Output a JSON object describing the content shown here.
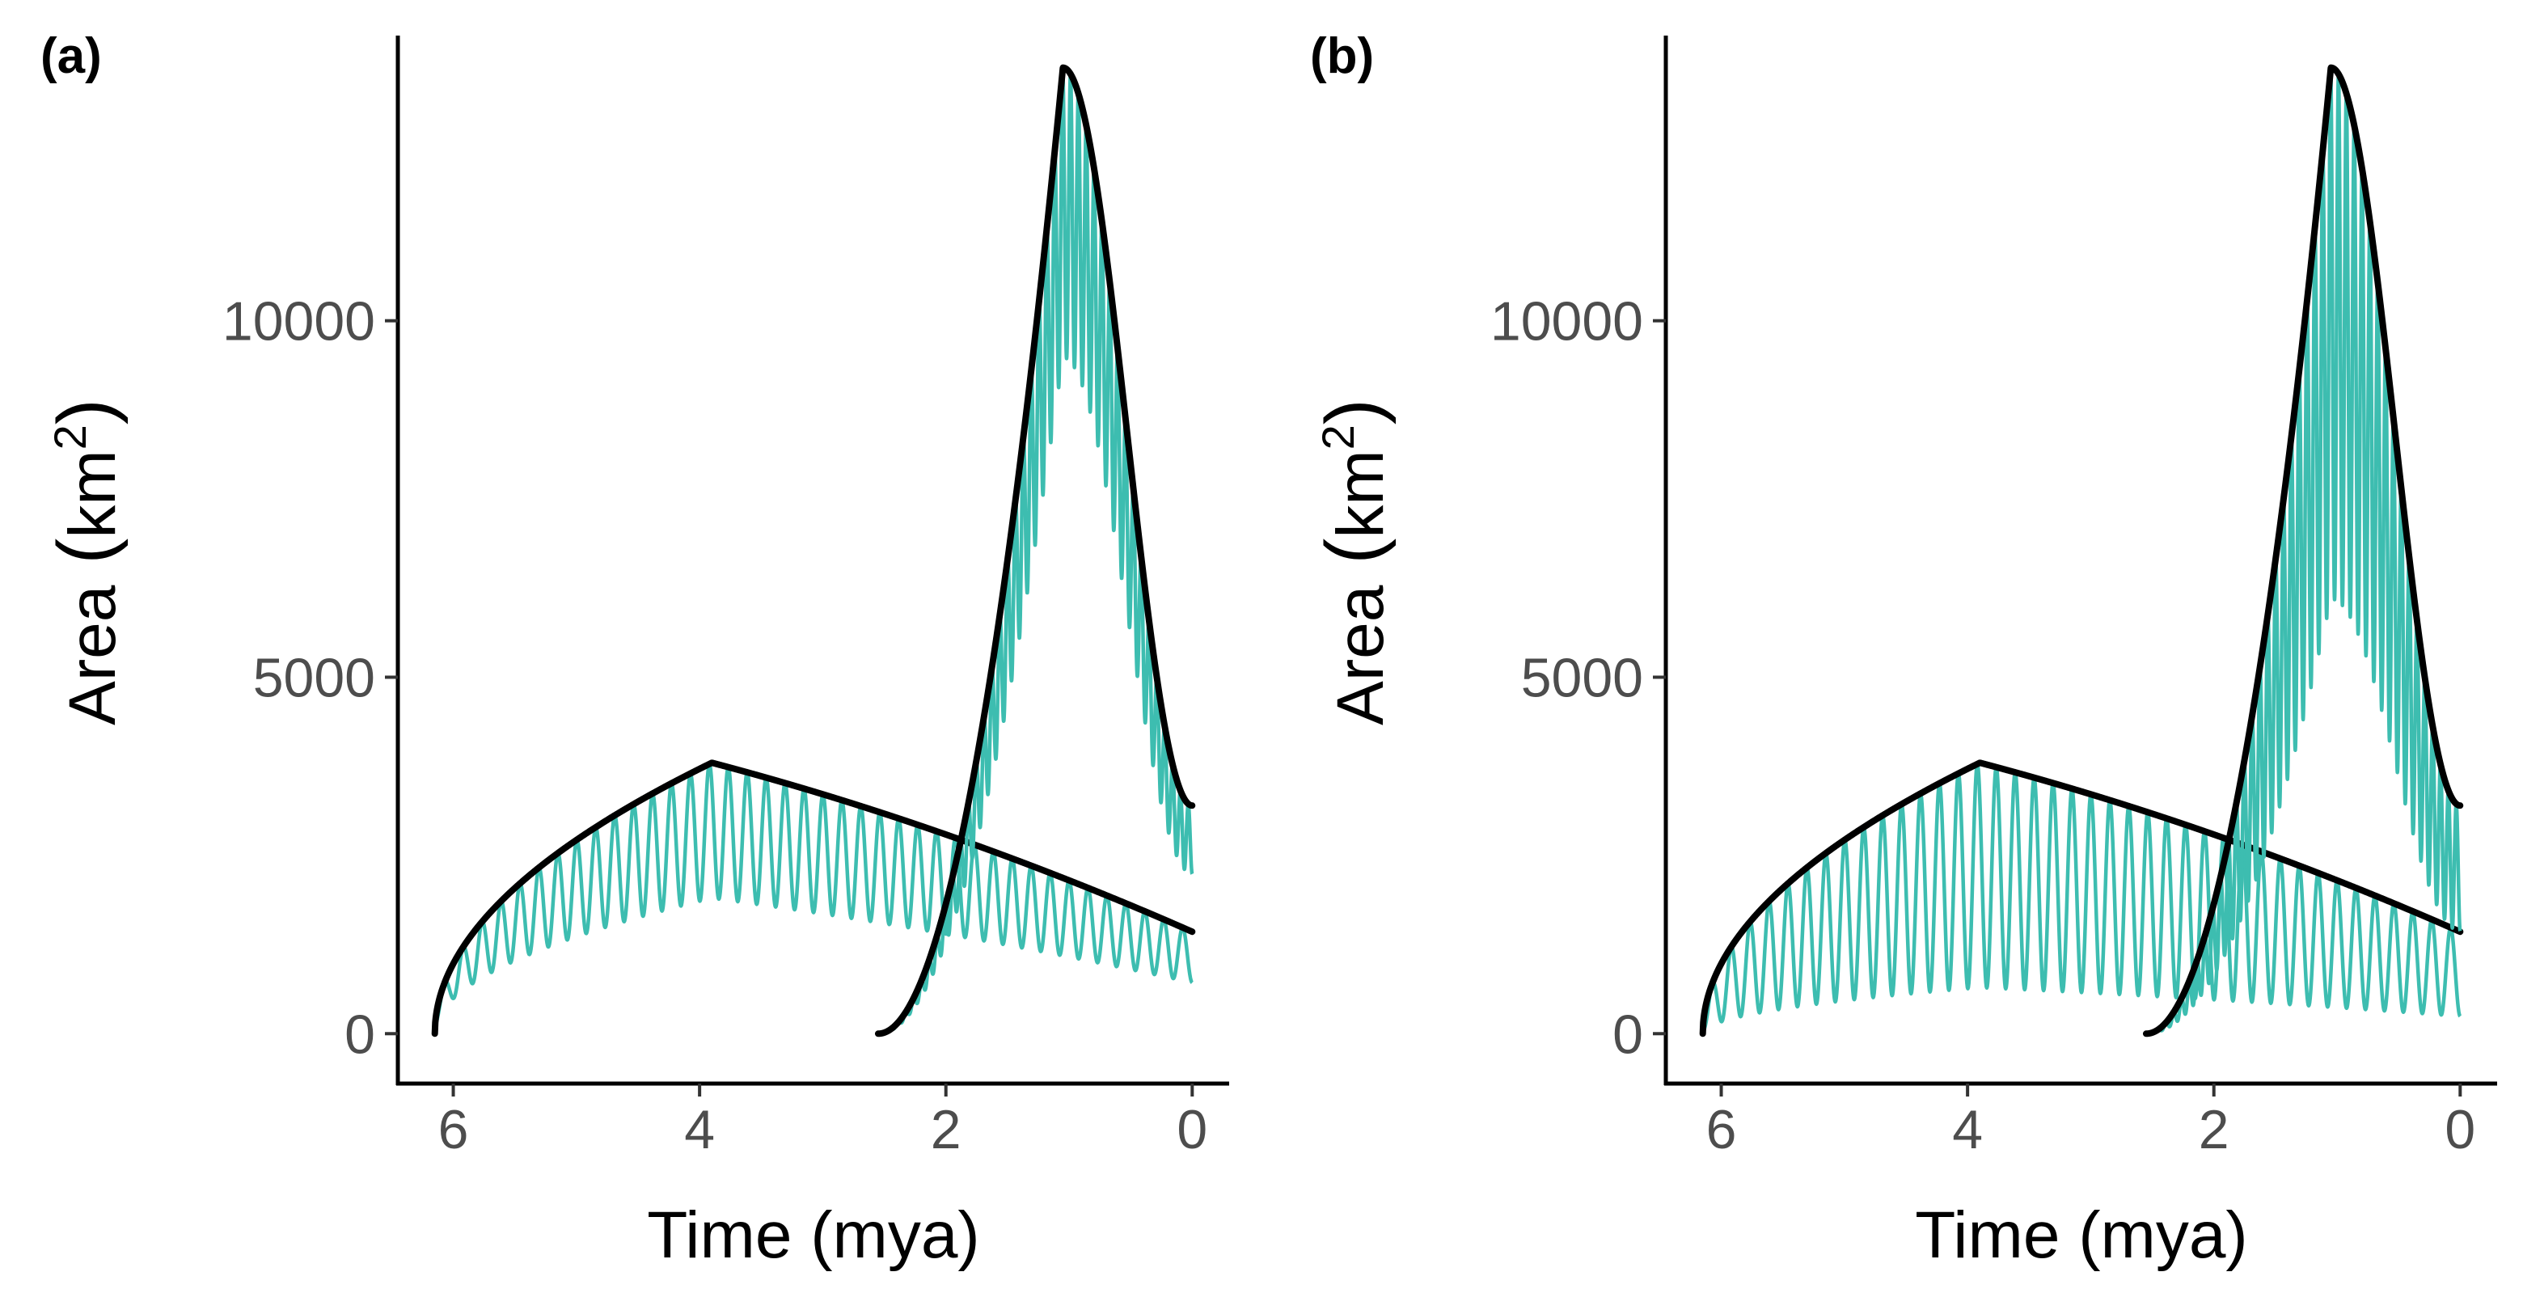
{
  "colors": {
    "oscillation": "#3dbdb0",
    "envelope": "#000000",
    "tick_label": "#4d4d4d",
    "axis": "#000000"
  },
  "chart_data": [
    {
      "type": "line",
      "panel_label": "(a)",
      "xlabel": "Time (mya)",
      "ylabel_text": "Area",
      "ylabel_unit": "km",
      "ylabel_sup": "2",
      "x_reversed": true,
      "xlim": [
        6.45,
        -0.3
      ],
      "ylim": [
        -700,
        14000
      ],
      "x_ticks": [
        6,
        4,
        2,
        0
      ],
      "x_tick_labels": [
        "6",
        "4",
        "2",
        "0"
      ],
      "y_ticks": [
        0,
        5000,
        10000
      ],
      "y_tick_labels": [
        "0",
        "5000",
        "10000"
      ],
      "grid": false,
      "islands": [
        {
          "start": 6.15,
          "end": 0.0,
          "peak_time": 3.9,
          "peak_area": 3800,
          "end_area": 1430,
          "envelope_exponent": 0.5,
          "trough_fraction": 0.5,
          "cycles": 40
        },
        {
          "start": 2.55,
          "end": 0.0,
          "peak_time": 1.05,
          "peak_area": 13550,
          "end_area": 3200,
          "envelope_exponent": 2.0,
          "trough_fraction": 0.7,
          "cycles": 40
        }
      ]
    },
    {
      "type": "line",
      "panel_label": "(b)",
      "xlabel": "Time (mya)",
      "ylabel_text": "Area",
      "ylabel_unit": "km",
      "ylabel_sup": "2",
      "x_reversed": true,
      "xlim": [
        6.45,
        -0.3
      ],
      "ylim": [
        -700,
        14000
      ],
      "x_ticks": [
        6,
        4,
        2,
        0
      ],
      "x_tick_labels": [
        "6",
        "4",
        "2",
        "0"
      ],
      "y_ticks": [
        0,
        5000,
        10000
      ],
      "y_tick_labels": [
        "0",
        "5000",
        "10000"
      ],
      "grid": false,
      "islands": [
        {
          "start": 6.15,
          "end": 0.0,
          "peak_time": 3.9,
          "peak_area": 3800,
          "end_area": 1430,
          "envelope_exponent": 0.5,
          "trough_fraction": 0.17,
          "cycles": 40
        },
        {
          "start": 2.55,
          "end": 0.0,
          "peak_time": 1.05,
          "peak_area": 13550,
          "end_area": 3200,
          "envelope_exponent": 2.0,
          "trough_fraction": 0.45,
          "cycles": 40
        }
      ]
    }
  ]
}
